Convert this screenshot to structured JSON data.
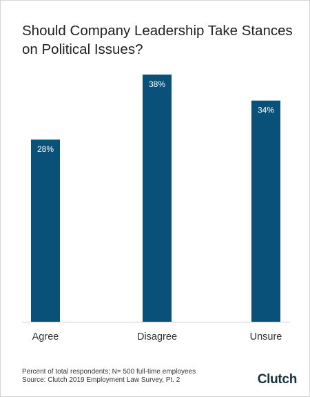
{
  "chart_data": {
    "type": "bar",
    "title": "Should Company Leadership Take Stances on Political Issues?",
    "categories": [
      "Agree",
      "Disagree",
      "Unsure"
    ],
    "values": [
      28,
      38,
      34
    ],
    "value_labels": [
      "28%",
      "38%",
      "34%"
    ],
    "ylim": [
      0,
      38
    ],
    "grid": false,
    "colors": {
      "bar": "#0a517a"
    }
  },
  "footnotes": {
    "line1": "Percent of total respondents; N= 500 full-time employees",
    "line2": "Source: Clutch 2019 Employment Law Survey, Pt. 2"
  },
  "brand": {
    "logo_text": "Clutch"
  }
}
